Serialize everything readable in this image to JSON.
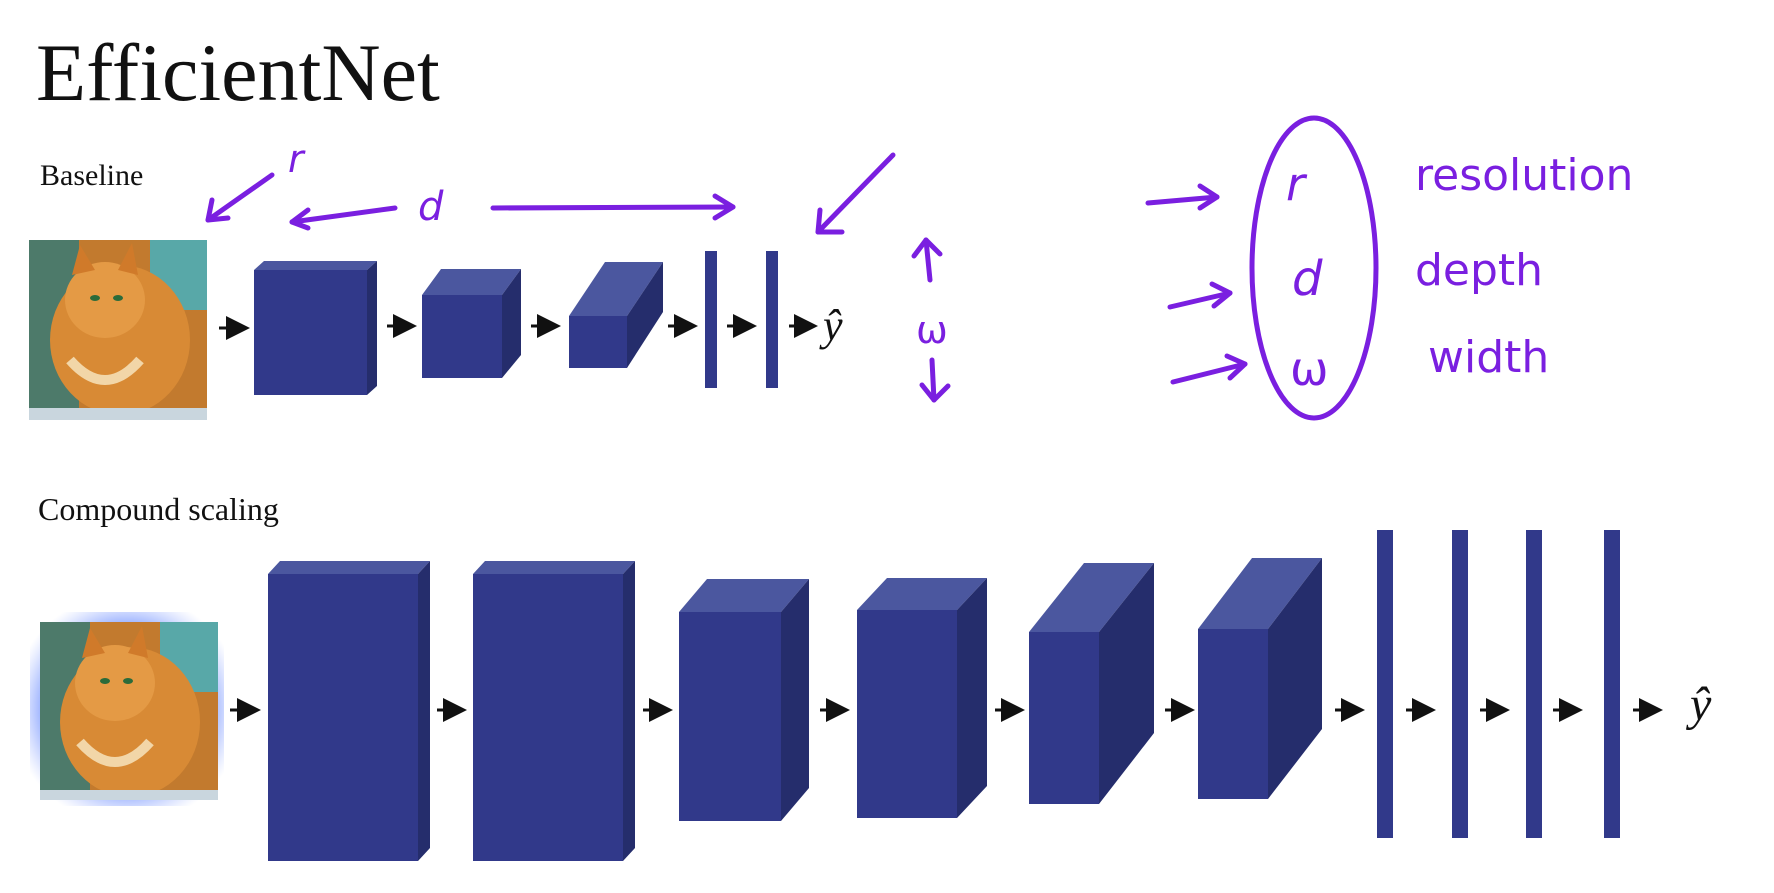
{
  "slide": {
    "title": "EfficientNet",
    "baseline_label": "Baseline",
    "compound_label": "Compound scaling",
    "output_symbol": "ŷ"
  },
  "annotations": {
    "r": "r",
    "d": "d",
    "w": "ω",
    "legend": [
      {
        "symbol": "r",
        "word": "resolution"
      },
      {
        "symbol": "d",
        "word": "depth"
      },
      {
        "symbol": "ω",
        "word": "width"
      }
    ]
  },
  "colors": {
    "block_front": "#31398a",
    "block_top": "#4b579f",
    "block_side": "#252d6c",
    "ink": "#7a1fe0"
  }
}
